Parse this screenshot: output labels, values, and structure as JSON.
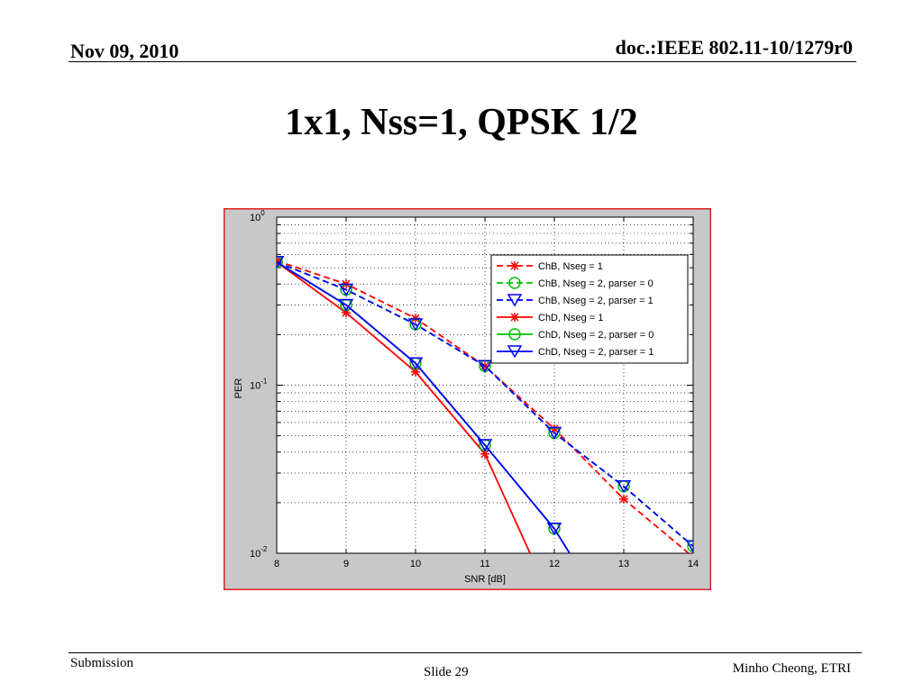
{
  "header": {
    "date": "Nov 09, 2010",
    "doc": "doc.:IEEE 802.11-10/1279r0"
  },
  "slide": {
    "title": "1x1, Nss=1, QPSK 1/2"
  },
  "footer": {
    "left": "Submission",
    "center": "Slide 29",
    "right": "Minho Cheong, ETRI"
  },
  "colors": {
    "frame_border": "#e02020",
    "figure_bg": "#c8c8c8",
    "red": "#ff0000",
    "green": "#00c000",
    "blue": "#0000ff"
  },
  "chart_data": {
    "type": "line",
    "xlabel": "SNR [dB]",
    "ylabel": "PER",
    "xlim": [
      8,
      14
    ],
    "ylim": [
      0.01,
      1
    ],
    "yscale": "log",
    "grid": true,
    "legend_position": "top-right",
    "x_ticks": [
      "8",
      "9",
      "10",
      "11",
      "12",
      "13",
      "14"
    ],
    "y_ticks": [
      {
        "base": "10",
        "exp": "0"
      },
      {
        "base": "10",
        "exp": "-1"
      },
      {
        "base": "10",
        "exp": "-2"
      }
    ],
    "series": [
      {
        "name": "ChB, Nseg = 1",
        "color": "#ff0000",
        "dash": true,
        "marker": "star",
        "x": [
          8,
          9,
          10,
          11,
          12,
          13,
          14
        ],
        "y": [
          0.55,
          0.4,
          0.25,
          0.13,
          0.055,
          0.021,
          0.0095
        ]
      },
      {
        "name": "ChB, Nseg = 2, parser = 0",
        "color": "#00c000",
        "dash": true,
        "marker": "circle",
        "x": [
          8,
          9,
          10,
          11,
          12,
          13,
          14
        ],
        "y": [
          0.54,
          0.37,
          0.23,
          0.13,
          0.052,
          0.025,
          0.011
        ]
      },
      {
        "name": "ChB, Nseg = 2, parser = 1",
        "color": "#0000ff",
        "dash": true,
        "marker": "triangle",
        "x": [
          8,
          9,
          10,
          11,
          12,
          13,
          14
        ],
        "y": [
          0.54,
          0.37,
          0.23,
          0.13,
          0.052,
          0.025,
          0.011
        ]
      },
      {
        "name": "ChD, Nseg = 1",
        "color": "#ff0000",
        "dash": false,
        "marker": "star",
        "x": [
          8,
          9,
          10,
          11,
          11.65
        ],
        "y": [
          0.54,
          0.27,
          0.12,
          0.039,
          0.01
        ]
      },
      {
        "name": "ChD, Nseg = 2, parser = 0",
        "color": "#00c000",
        "dash": false,
        "marker": "circle",
        "x": [
          8,
          9,
          10,
          11,
          12,
          12.22
        ],
        "y": [
          0.54,
          0.3,
          0.135,
          0.044,
          0.014,
          0.01
        ]
      },
      {
        "name": "ChD, Nseg = 2, parser = 1",
        "color": "#0000ff",
        "dash": false,
        "marker": "triangle",
        "x": [
          8,
          9,
          10,
          11,
          12,
          12.22
        ],
        "y": [
          0.54,
          0.3,
          0.135,
          0.044,
          0.014,
          0.01
        ]
      }
    ]
  }
}
